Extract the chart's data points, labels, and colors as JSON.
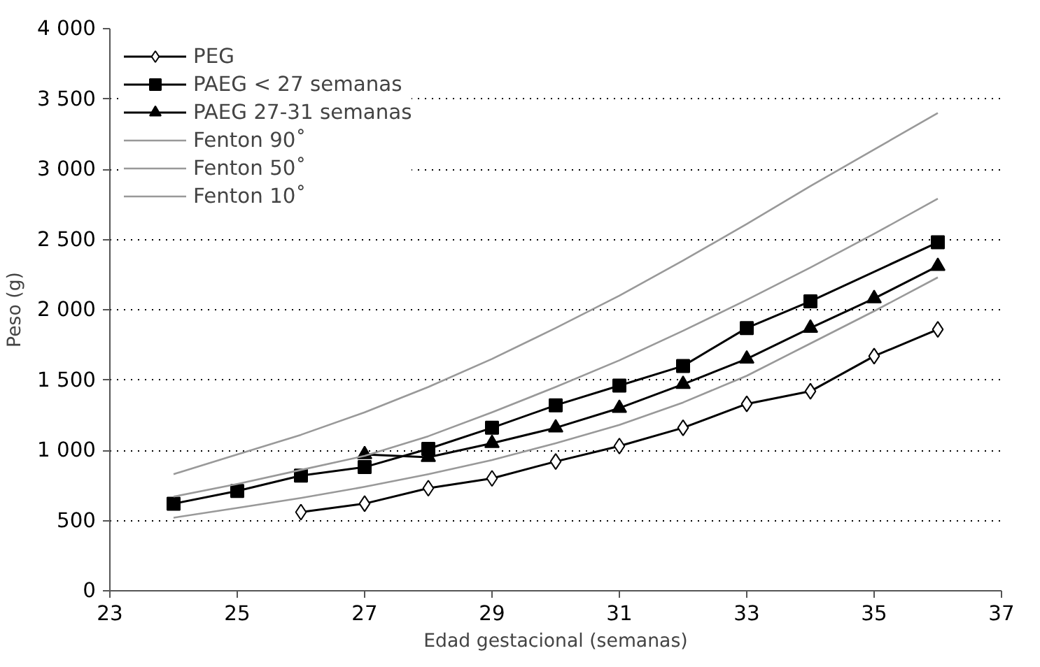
{
  "chart_data": {
    "type": "line",
    "xlabel": "Edad gestacional (semanas)",
    "ylabel": "Peso (g)",
    "xlim": [
      23,
      37
    ],
    "xticks": [
      23,
      25,
      27,
      29,
      31,
      33,
      35,
      37
    ],
    "ylim": [
      0,
      4000
    ],
    "yticks": [
      0,
      500,
      {
        "value": 1000,
        "label": "1 000"
      },
      {
        "value": 1500,
        "label": "1 500"
      },
      {
        "value": 2000,
        "label": "2 000"
      },
      {
        "value": 2500,
        "label": "2 500"
      },
      {
        "value": 3000,
        "label": "3 000"
      },
      {
        "value": 3500,
        "label": "3 500"
      },
      {
        "value": 4000,
        "label": "4 000"
      }
    ],
    "grid": "y",
    "legend": "top left",
    "series": [
      {
        "name": "PEG",
        "color": "#000000",
        "marker": "diamond",
        "x": [
          26,
          27,
          28,
          29,
          30,
          31,
          32,
          33,
          34,
          35,
          36
        ],
        "values": [
          560,
          620,
          730,
          800,
          920,
          1030,
          1160,
          1330,
          1420,
          1670,
          1860
        ]
      },
      {
        "name": "PAEG < 27 semanas",
        "color": "#000000",
        "marker": "square",
        "x": [
          24,
          25,
          26,
          27,
          28,
          29,
          30,
          31,
          32,
          33,
          34,
          36
        ],
        "values": [
          620,
          710,
          820,
          880,
          1010,
          1160,
          1320,
          1460,
          1600,
          1870,
          2060,
          2480
        ]
      },
      {
        "name": "PAEG 27-31 semanas",
        "color": "#000000",
        "marker": "triangle",
        "x": [
          27,
          28,
          29,
          30,
          31,
          32,
          33,
          34,
          35,
          36
        ],
        "values": [
          970,
          950,
          1050,
          1160,
          1300,
          1470,
          1650,
          1870,
          2080,
          2310
        ]
      },
      {
        "name": "Fenton 90˚",
        "color": "#999999",
        "marker": "none",
        "x": [
          24,
          25,
          26,
          27,
          28,
          29,
          30,
          31,
          32,
          33,
          34,
          35,
          36
        ],
        "values": [
          830,
          970,
          1110,
          1270,
          1450,
          1650,
          1870,
          2100,
          2350,
          2610,
          2880,
          3140,
          3400
        ]
      },
      {
        "name": "Fenton 50˚",
        "color": "#999999",
        "marker": "none",
        "x": [
          24,
          25,
          26,
          27,
          28,
          29,
          30,
          31,
          32,
          33,
          34,
          35,
          36
        ],
        "values": [
          670,
          760,
          860,
          960,
          1100,
          1270,
          1450,
          1640,
          1850,
          2070,
          2300,
          2540,
          2790
        ]
      },
      {
        "name": "Fenton 10˚",
        "color": "#999999",
        "marker": "none",
        "x": [
          24,
          25,
          26,
          27,
          28,
          29,
          30,
          31,
          32,
          33,
          34,
          35,
          36
        ],
        "values": [
          520,
          590,
          660,
          740,
          830,
          930,
          1050,
          1180,
          1340,
          1530,
          1760,
          1990,
          2230
        ]
      }
    ]
  }
}
